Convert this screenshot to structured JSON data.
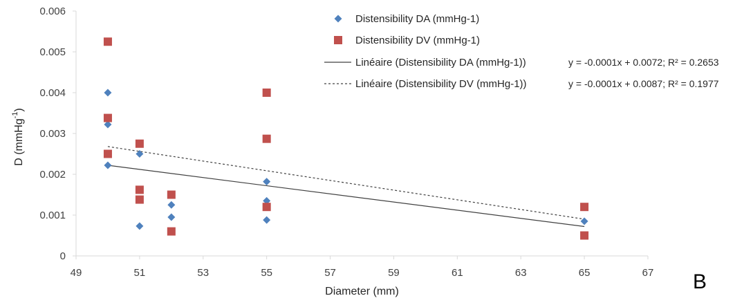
{
  "chart_data": {
    "type": "scatter",
    "title": "",
    "xlabel": "Diameter  (mm)",
    "ylabel": {
      "base": "D  (mmHg",
      "sup": "-1",
      "close": ")"
    },
    "xlim": [
      49,
      67
    ],
    "ylim": [
      0,
      0.006
    ],
    "xticks": [
      49,
      51,
      53,
      55,
      57,
      59,
      61,
      63,
      65,
      67
    ],
    "yticks": [
      0,
      0.001,
      0.002,
      0.003,
      0.004,
      0.005,
      0.006
    ],
    "ytick_labels": [
      "0",
      "0.001",
      "0.002",
      "0.003",
      "0.004",
      "0.005",
      "0.006"
    ],
    "grid": false,
    "legend_position": "top-right",
    "panel_label": "B",
    "colors": {
      "DA": "#4f81bd",
      "DV": "#c0504d",
      "axis": "#d9d9d9",
      "trend": "#404040"
    },
    "series": [
      {
        "name": "Distensibility DA (mmHg-1)",
        "marker": "diamond",
        "points": [
          [
            50,
            0.004
          ],
          [
            50,
            0.00322
          ],
          [
            50,
            0.00222
          ],
          [
            51,
            0.0025
          ],
          [
            51,
            0.00073
          ],
          [
            52,
            0.00125
          ],
          [
            52,
            0.00095
          ],
          [
            55,
            0.00182
          ],
          [
            55,
            0.00135
          ],
          [
            55,
            0.00088
          ],
          [
            65,
            0.00085
          ]
        ]
      },
      {
        "name": "Distensibility DV (mmHg-1)",
        "marker": "square",
        "points": [
          [
            50,
            0.00525
          ],
          [
            50,
            0.00338
          ],
          [
            50,
            0.0025
          ],
          [
            51,
            0.00275
          ],
          [
            51,
            0.00162
          ],
          [
            51,
            0.00138
          ],
          [
            52,
            0.0015
          ],
          [
            52,
            0.0006
          ],
          [
            55,
            0.004
          ],
          [
            55,
            0.00287
          ],
          [
            55,
            0.0012
          ],
          [
            65,
            0.0012
          ],
          [
            65,
            0.0005
          ]
        ]
      }
    ],
    "trendlines": [
      {
        "name": "Linéaire (Distensibility DA (mmHg-1))",
        "style": "solid",
        "x": [
          50,
          65
        ],
        "y": [
          0.00222,
          0.00072
        ],
        "equation": "y = -0.0001x + 0.0072; R² = 0.2653"
      },
      {
        "name": "Linéaire (Distensibility DV (mmHg-1))",
        "style": "dashed",
        "x": [
          50,
          65
        ],
        "y": [
          0.00268,
          0.0009
        ],
        "equation": "y = -0.0001x + 0.0087; R² = 0.1977"
      }
    ]
  }
}
